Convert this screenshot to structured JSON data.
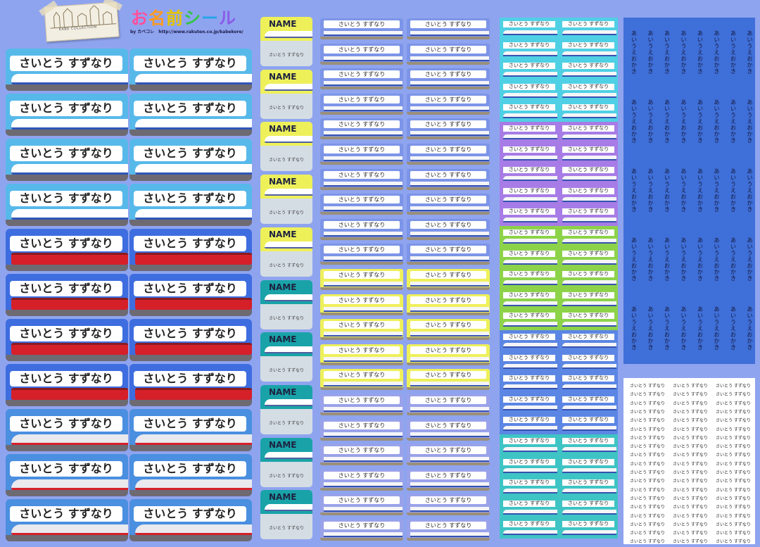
{
  "header": {
    "title_chars": [
      "お",
      "名",
      "前",
      "シ",
      "ー",
      "ル"
    ],
    "byline": "by カベコレ　http://www.rakuten.co.jp/kabekore/",
    "logo_text": "KABE COLLECTION"
  },
  "labels": {
    "name_full": "さいとう すずなり",
    "name_tag": "NAME",
    "name_vertical": "あいうえお かき"
  },
  "colors": {
    "sky": "#2aa3e2",
    "blue": "#3e6de0",
    "pink": "#ff4f9b",
    "yellow": "#eff35a",
    "teal": "#19a3a8",
    "purple": "#a77ce6",
    "green": "#8dd34a",
    "cyan": "#4fd0e4",
    "darkblue": "#3f6fd8"
  }
}
